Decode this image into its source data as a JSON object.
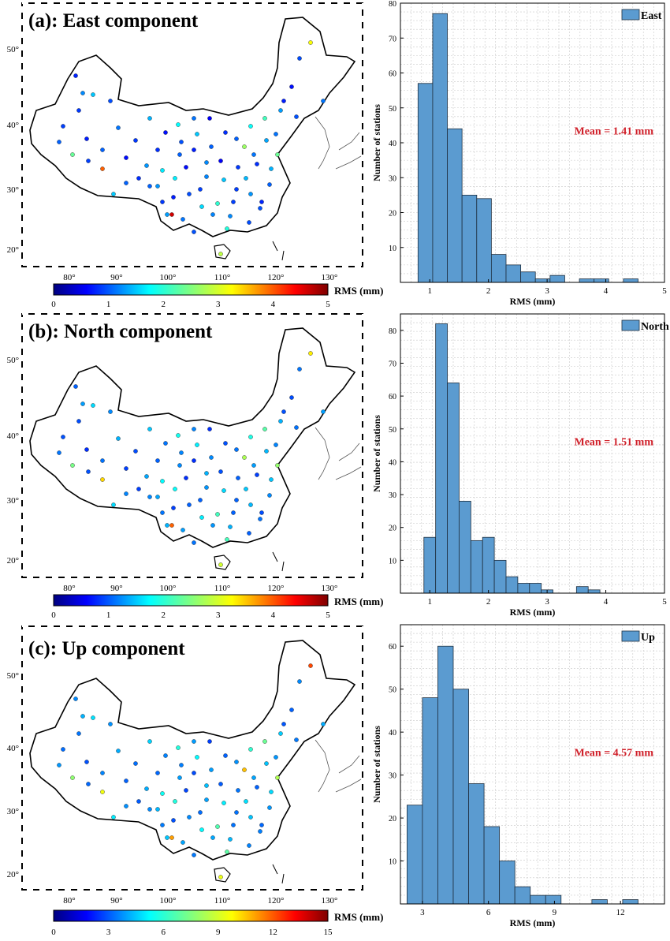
{
  "panels": [
    {
      "id": "a",
      "map_title": "(a): East component",
      "map_axes": {
        "lon_ticks": [
          80,
          90,
          100,
          110,
          120,
          130
        ],
        "lat_ticks": [
          20,
          30,
          40,
          50
        ],
        "lon_range": [
          72,
          136
        ],
        "lat_range": [
          17,
          55
        ]
      },
      "colorbar": {
        "label": "RMS (mm)",
        "ticks": [
          0,
          1,
          2,
          3,
          4,
          5
        ],
        "range": [
          0,
          5
        ]
      },
      "station_values": [
        1.1,
        0.9,
        1.3,
        0.8,
        1.6,
        1.0,
        1.2,
        0.9,
        1.5,
        0.7,
        1.1,
        1.8,
        1.0,
        1.4,
        0.9,
        1.2,
        1.7,
        2.1,
        1.3,
        1.0,
        0.8,
        1.1,
        1.5,
        2.4,
        1.2,
        0.9,
        1.6,
        1.3,
        4.6,
        2.8,
        1.1,
        1.9,
        2.2,
        1.4,
        0.7,
        1.0,
        3.1,
        1.2,
        1.6,
        1.1
      ]
    },
    {
      "id": "b",
      "map_title": "(b): North component",
      "map_axes": {
        "lon_ticks": [
          80,
          90,
          100,
          110,
          120,
          130
        ],
        "lat_ticks": [
          20,
          30,
          40,
          50
        ],
        "lon_range": [
          72,
          136
        ],
        "lat_range": [
          17,
          55
        ]
      },
      "colorbar": {
        "label": "RMS (mm)",
        "ticks": [
          0,
          1,
          2,
          3,
          4,
          5
        ],
        "range": [
          0,
          5
        ]
      },
      "station_values": [
        1.2,
        1.0,
        1.4,
        1.1,
        1.7,
        1.3,
        1.5,
        1.0,
        1.6,
        1.2,
        1.3,
        1.9,
        1.1,
        1.5,
        1.2,
        1.4,
        1.8,
        2.2,
        1.5,
        1.1,
        1.0,
        1.3,
        1.6,
        2.6,
        1.4,
        1.1,
        1.7,
        1.5,
        3.9,
        2.9,
        1.2,
        2.0,
        2.3,
        1.5,
        1.0,
        1.2,
        3.2,
        1.4,
        1.8,
        1.3
      ]
    },
    {
      "id": "c",
      "map_title": "(c): Up component",
      "map_axes": {
        "lon_ticks": [
          80,
          90,
          100,
          110,
          120,
          130
        ],
        "lat_ticks": [
          20,
          30,
          40,
          50
        ],
        "lon_range": [
          72,
          136
        ],
        "lat_range": [
          17,
          55
        ]
      },
      "colorbar": {
        "label": "RMS (mm)",
        "ticks": [
          0,
          3,
          6,
          9,
          12,
          15
        ],
        "range": [
          0,
          15
        ]
      },
      "station_values": [
        4.1,
        3.6,
        4.5,
        3.9,
        5.2,
        4.0,
        4.4,
        3.5,
        5.0,
        3.8,
        4.2,
        6.1,
        3.9,
        4.8,
        3.7,
        4.3,
        5.6,
        6.8,
        4.6,
        3.8,
        3.4,
        4.1,
        5.1,
        8.2,
        4.3,
        3.6,
        5.4,
        4.7,
        10.8,
        9.1,
        4.0,
        6.3,
        7.2,
        4.9,
        3.3,
        3.9,
        12.1,
        4.4,
        5.6,
        4.2
      ]
    }
  ],
  "chart_data": [
    {
      "type": "bar",
      "legend": "East",
      "annotation": "Mean = 1.41 mm",
      "xlabel": "RMS (mm)",
      "ylabel": "Number of stations",
      "xlim": [
        0.5,
        5
      ],
      "ylim": [
        0,
        80
      ],
      "xticks": [
        1,
        2,
        3,
        4,
        5
      ],
      "yticks": [
        10,
        20,
        30,
        40,
        50,
        60,
        70,
        80
      ],
      "bin_width": 0.25,
      "bin_left_edges": [
        0.8,
        1.05,
        1.3,
        1.55,
        1.8,
        2.05,
        2.3,
        2.55,
        2.8,
        3.05,
        3.3,
        3.55,
        3.8,
        4.05,
        4.3
      ],
      "values": [
        57,
        77,
        44,
        25,
        24,
        8,
        5,
        3,
        1,
        2,
        0,
        1,
        1,
        0,
        1
      ]
    },
    {
      "type": "bar",
      "legend": "North",
      "annotation": "Mean = 1.51 mm",
      "xlabel": "RMS (mm)",
      "ylabel": "Number of stations",
      "xlim": [
        0.5,
        5
      ],
      "ylim": [
        0,
        85
      ],
      "xticks": [
        1,
        2,
        3,
        4,
        5
      ],
      "yticks": [
        10,
        20,
        30,
        40,
        50,
        60,
        70,
        80
      ],
      "bin_width": 0.2,
      "bin_left_edges": [
        0.9,
        1.1,
        1.3,
        1.5,
        1.7,
        1.9,
        2.1,
        2.3,
        2.5,
        2.7,
        2.9,
        3.1,
        3.3,
        3.5,
        3.7
      ],
      "values": [
        17,
        82,
        64,
        28,
        16,
        17,
        10,
        5,
        3,
        3,
        1,
        0,
        0,
        2,
        1
      ]
    },
    {
      "type": "bar",
      "legend": "Up",
      "annotation": "Mean = 4.57 mm",
      "xlabel": "RMS (mm)",
      "ylabel": "Number of stations",
      "xlim": [
        2,
        14
      ],
      "ylim": [
        0,
        65
      ],
      "xticks": [
        3,
        6,
        9,
        12
      ],
      "yticks": [
        10,
        20,
        30,
        40,
        50,
        60
      ],
      "bin_width": 0.7,
      "bin_left_edges": [
        2.3,
        3.0,
        3.7,
        4.4,
        5.1,
        5.8,
        6.5,
        7.2,
        7.9,
        8.6,
        9.3,
        10.0,
        10.7,
        11.4,
        12.1
      ],
      "values": [
        23,
        48,
        60,
        50,
        28,
        18,
        10,
        4,
        2,
        2,
        0,
        0,
        1,
        0,
        1
      ]
    }
  ]
}
